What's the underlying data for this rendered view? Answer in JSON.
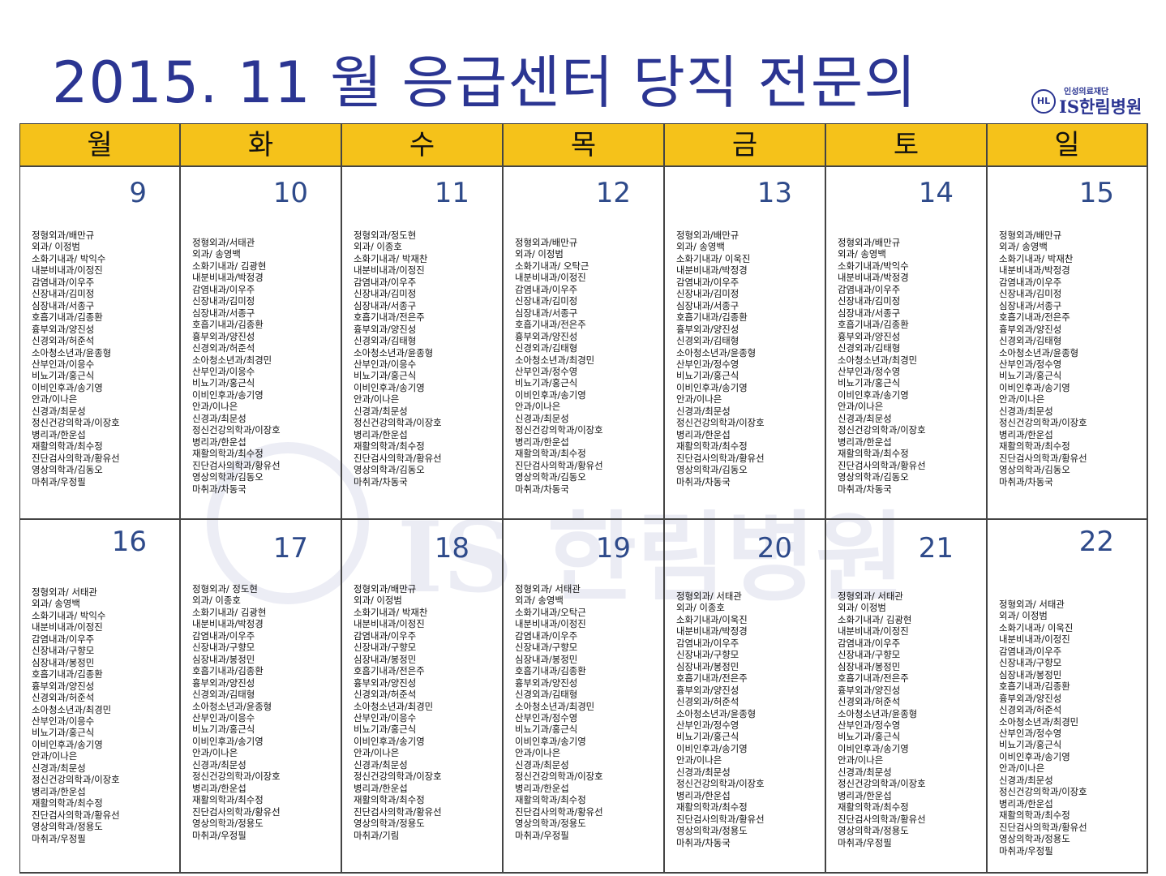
{
  "title": "2015. 11  월  응급센터  당직  전문의",
  "logo": {
    "subtitle": "인성의료재단",
    "name": "IS한림병원",
    "seal": "HL"
  },
  "weekdays": [
    "월",
    "화",
    "수",
    "목",
    "금",
    "토",
    "일"
  ],
  "colors": {
    "header_bg": "#f5c21a",
    "title": "#2b3592",
    "day_number": "#2e4a8a"
  },
  "weeks": [
    [
      {
        "day": "9",
        "doctors": [
          "정형외과/배만규",
          "외과/ 이정범",
          "소화기내과/ 박익수",
          "내분비내과/이정진",
          "감염내과/이우주",
          "신장내과/김미정",
          "심장내과/서종구",
          "호흡기내과/김종환",
          "흉부외과/양진성",
          "신경외과/허준석",
          "소아청소년과/윤종형",
          "산부인과/이응수",
          "비뇨기과/홍근식",
          "이비인후과/송기영",
          "안과/이나은",
          "신경과/최문성",
          "정신건강의학과/이장호",
          "병리과/한운섭",
          "재활의학과/최수정",
          "진단검사의학과/황유선",
          "영상의학과/김동오",
          "마취과/우정필"
        ]
      },
      {
        "day": "10",
        "doctors": [
          "정형외과/서태관",
          "외과/ 송영백",
          "소화기내과/ 김광현",
          "내분비내과/박정경",
          "감염내과/이우주",
          "신장내과/김미정",
          "심장내과/서종구",
          "호흡기내과/김종환",
          "흉부외과/양진성",
          "신경외과/허준석",
          "소아청소년과/최경민",
          "산부인과/이응수",
          "비뇨기과/홍근식",
          "이비인후과/송기영",
          "안과/이나은",
          "신경과/최문성",
          "정신건강의학과/이장호",
          "병리과/한운섭",
          "재활의학과/최수정",
          "진단검사의학과/황유선",
          "영상의학과/김동오",
          "마취과/차동국"
        ]
      },
      {
        "day": "11",
        "doctors": [
          "정형외과/정도현",
          "외과/ 이종호",
          "소화기내과/ 박재찬",
          "내분비내과/이정진",
          "감염내과/이우주",
          "신장내과/김미정",
          "심장내과/서종구",
          "호흡기내과/전은주",
          "흉부외과/양진성",
          "신경외과/김태형",
          "소아청소년과/윤종형",
          "산부인과/이응수",
          "비뇨기과/홍근식",
          "이비인후과/송기영",
          "안과/이나은",
          "신경과/최문성",
          "정신건강의학과/이장호",
          "병리과/한운섭",
          "재활의학과/최수정",
          "진단검사의학과/황유선",
          "영상의학과/김동오",
          "마취과/차동국"
        ]
      },
      {
        "day": "12",
        "doctors": [
          "정형외과/배만규",
          "외과/ 이정범",
          "소화기내과/ 오탁근",
          "내분비내과/이정진",
          "감염내과/이우주",
          "신장내과/김미정",
          "심장내과/서종구",
          "호흡기내과/전은주",
          "흉부외과/양진성",
          "신경외과/김태형",
          "소아청소년과/최경민",
          "산부인과/정수영",
          "비뇨기과/홍근식",
          "이비인후과/송기영",
          "안과/이나은",
          "신경과/최문성",
          "정신건강의학과/이장호",
          "병리과/한운섭",
          "재활의학과/최수정",
          "진단검사의학과/황유선",
          "영상의학과/김동오",
          "마취과/차동국"
        ]
      },
      {
        "day": "13",
        "doctors": [
          "정형외과/배만규",
          "외과/ 송영백",
          "소화기내과/ 이욱진",
          "내분비내과/박정경",
          "감염내과/이우주",
          "신장내과/김미정",
          "심장내과/서종구",
          "호흡기내과/김종환",
          "흉부외과/양진성",
          "신경외과/김태형",
          "소아청소년과/윤종형",
          "산부인과/정수영",
          "비뇨기과/홍근식",
          "이비인후과/송기영",
          "안과/이나은",
          "신경과/최문성",
          "정신건강의학과/이장호",
          "병리과/한운섭",
          "재활의학과/최수정",
          "진단검사의학과/황유선",
          "영상의학과/김동오",
          "마취과/차동국"
        ]
      },
      {
        "day": "14",
        "doctors": [
          "정형외과/배만규",
          "외과/ 송영백",
          "소화기내과/박익수",
          "내분비내과/박정경",
          "감염내과/이우주",
          "신장내과/김미정",
          "심장내과/서종구",
          "호흡기내과/김종환",
          "흉부외과/양진성",
          "신경외과/김태형",
          "소아청소년과/최경민",
          "산부인과/정수영",
          "비뇨기과/홍근식",
          "이비인후과/송기영",
          "안과/이나은",
          "신경과/최문성",
          "정신건강의학과/이장호",
          "병리과/한운섭",
          "재활의학과/최수정",
          "진단검사의학과/황유선",
          "영상의학과/김동오",
          "마취과/차동국"
        ]
      },
      {
        "day": "15",
        "doctors": [
          "정형외과/배만규",
          "외과/ 송영백",
          "소화기내과/ 박재찬",
          "내분비내과/박정경",
          "감염내과/이우주",
          "신장내과/김미정",
          "심장내과/서종구",
          "호흡기내과/전은주",
          "흉부외과/양진성",
          "신경외과/김태형",
          "소아청소년과/윤종형",
          "산부인과/정수영",
          "비뇨기과/홍근식",
          "이비인후과/송기영",
          "안과/이나은",
          "신경과/최문성",
          "정신건강의학과/이장호",
          "병리과/한운섭",
          "재활의학과/최수정",
          "진단검사의학과/황유선",
          "영상의학과/김동오",
          "마취과/차동국"
        ]
      }
    ],
    [
      {
        "day": "16",
        "doctors": [
          "정형외과/ 서태관",
          "외과/ 송영백",
          "소화기내과/ 박익수",
          "내분비내과/이정진",
          "감염내과/이우주",
          "신장내과/구향모",
          "심장내과/봉정민",
          "호흡기내과/김종환",
          "흉부외과/양진성",
          "신경외과/허준석",
          "소아청소년과/최경민",
          "산부인과/이응수",
          "비뇨기과/홍근식",
          "이비인후과/송기영",
          "안과/이나은",
          "신경과/최문성",
          "정신건강의학과/이장호",
          "병리과/한운섭",
          "재활의학과/최수정",
          "진단검사의학과/황유선",
          "영상의학과/정용도",
          "마취과/우정필"
        ]
      },
      {
        "day": "17",
        "doctors": [
          "정형외과/ 정도현",
          "외과/ 이종호",
          "소화기내과/ 김광현",
          "내분비내과/박정경",
          "감염내과/이우주",
          "신장내과/구향모",
          "심장내과/봉정민",
          "호흡기내과/김종환",
          "흉부외과/양진성",
          "신경외과/김태형",
          "소아청소년과/윤종형",
          "산부인과/이응수",
          "비뇨기과/홍근식",
          "이비인후과/송기영",
          "안과/이나은",
          "신경과/최문성",
          "정신건강의학과/이장호",
          "병리과/한운섭",
          "재활의학과/최수정",
          "진단검사의학과/황유선",
          "영상의학과/정용도",
          "마취과/우정필"
        ]
      },
      {
        "day": "18",
        "doctors": [
          "정형외과/배만규",
          "외과/ 이정범",
          "소화기내과/ 박재찬",
          "내분비내과/이정진",
          "감염내과/이우주",
          "신장내과/구향모",
          "심장내과/봉정민",
          "호흡기내과/전은주",
          "흉부외과/양진성",
          "신경외과/허준석",
          "소아청소년과/최경민",
          "산부인과/이응수",
          "비뇨기과/홍근식",
          "이비인후과/송기영",
          "안과/이나은",
          "신경과/최문성",
          "정신건강의학과/이장호",
          "병리과/한운섭",
          "재활의학과/최수정",
          "진단검사의학과/황유선",
          "영상의학과/정용도",
          "마취과/기림"
        ]
      },
      {
        "day": "19",
        "doctors": [
          "정형외과/ 서태관",
          "외과/ 송영백",
          "소화기내과/오탁근",
          "내분비내과/이정진",
          "감염내과/이우주",
          "신장내과/구향모",
          "심장내과/봉정민",
          "호흡기내과/김종환",
          "흉부외과/양진성",
          "신경외과/김태형",
          "소아청소년과/최경민",
          "산부인과/정수영",
          "비뇨기과/홍근식",
          "이비인후과/송기영",
          "안과/이나은",
          "신경과/최문성",
          "정신건강의학과/이장호",
          "병리과/한운섭",
          "재활의학과/최수정",
          "진단검사의학과/황유선",
          "영상의학과/정용도",
          "마취과/우정필"
        ]
      },
      {
        "day": "20",
        "doctors": [
          "정형외과/ 서태관",
          "외과/ 이종호",
          "소화기내과/이욱진",
          "내분비내과/박정경",
          "감염내과/이우주",
          "신장내과/구향모",
          "심장내과/봉정민",
          "호흡기내과/전은주",
          "흉부외과/양진성",
          "신경외과/허준석",
          "소아청소년과/윤종형",
          "산부인과/정수영",
          "비뇨기과/홍근식",
          "이비인후과/송기영",
          "안과/이나은",
          "신경과/최문성",
          "정신건강의학과/이장호",
          "병리과/한운섭",
          "재활의학과/최수정",
          "진단검사의학과/황유선",
          "영상의학과/정용도",
          "마취과/차동국"
        ]
      },
      {
        "day": "21",
        "doctors": [
          "정형외과/ 서태관",
          "외과/ 이정범",
          "소화기내과/ 김광현",
          "내분비내과/이정진",
          "감염내과/이우주",
          "신장내과/구향모",
          "심장내과/봉정민",
          "호흡기내과/전은주",
          "흉부외과/양진성",
          "신경외과/허준석",
          "소아청소년과/윤종형",
          "산부인과/정수영",
          "비뇨기과/홍근식",
          "이비인후과/송기영",
          "안과/이나은",
          "신경과/최문성",
          "정신건강의학과/이장호",
          "병리과/한운섭",
          "재활의학과/최수정",
          "진단검사의학과/황유선",
          "영상의학과/정용도",
          "마취과/우정필"
        ]
      },
      {
        "day": "22",
        "doctors": [
          "정형외과/ 서태관",
          "외과/ 이정범",
          "소화기내과/ 이욱진",
          "내분비내과/이정진",
          "감염내과/이우주",
          "신장내과/구향모",
          "심장내과/봉정민",
          "호흡기내과/김종환",
          "흉부외과/양진성",
          "신경외과/허준석",
          "소아청소년과/최경민",
          "산부인과/정수영",
          "비뇨기과/홍근식",
          "이비인후과/송기영",
          "안과/이나은",
          "신경과/최문성",
          "정신건강의학과/이장호",
          "병리과/한운섭",
          "재활의학과/최수정",
          "진단검사의학과/황유선",
          "영상의학과/정용도",
          "마취과/우정필"
        ]
      }
    ]
  ]
}
